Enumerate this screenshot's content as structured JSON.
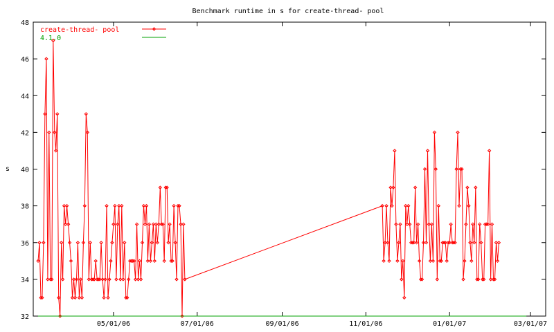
{
  "chart_data": {
    "type": "line",
    "title": "Benchmark runtime in s for create-thread-  pool",
    "xlabel": "",
    "ylabel": "s",
    "ylim": [
      32,
      48
    ],
    "yticks": [
      32,
      34,
      36,
      38,
      40,
      42,
      44,
      46,
      48
    ],
    "xticks": [
      "05/01/06",
      "07/01/06",
      "09/01/06",
      "11/01/06",
      "01/01/07",
      "03/01/07"
    ],
    "xlim": [
      "2006-03-07",
      "2007-03-01"
    ],
    "grid": false,
    "legend_position": "top-left",
    "series": [
      {
        "name": "create-thread-  pool",
        "color": "#ff0000",
        "markers": true,
        "points": [
          [
            "2006-03-07",
            35
          ],
          [
            "2006-03-08",
            36
          ],
          [
            "2006-03-09",
            33
          ],
          [
            "2006-03-10",
            33
          ],
          [
            "2006-03-11",
            36
          ],
          [
            "2006-03-12",
            43
          ],
          [
            "2006-03-13",
            46
          ],
          [
            "2006-03-14",
            34
          ],
          [
            "2006-03-15",
            42
          ],
          [
            "2006-03-16",
            34
          ],
          [
            "2006-03-17",
            34
          ],
          [
            "2006-03-18",
            47
          ],
          [
            "2006-03-19",
            42
          ],
          [
            "2006-03-20",
            41
          ],
          [
            "2006-03-21",
            43
          ],
          [
            "2006-03-22",
            33
          ],
          [
            "2006-03-23",
            32
          ],
          [
            "2006-03-24",
            36
          ],
          [
            "2006-03-25",
            34
          ],
          [
            "2006-03-26",
            38
          ],
          [
            "2006-03-27",
            37
          ],
          [
            "2006-03-28",
            38
          ],
          [
            "2006-03-29",
            37
          ],
          [
            "2006-03-30",
            36
          ],
          [
            "2006-03-31",
            35
          ],
          [
            "2006-04-01",
            33
          ],
          [
            "2006-04-02",
            34
          ],
          [
            "2006-04-03",
            33
          ],
          [
            "2006-04-04",
            34
          ],
          [
            "2006-04-05",
            36
          ],
          [
            "2006-04-06",
            33
          ],
          [
            "2006-04-07",
            34
          ],
          [
            "2006-04-08",
            33
          ],
          [
            "2006-04-09",
            36
          ],
          [
            "2006-04-10",
            38
          ],
          [
            "2006-04-11",
            43
          ],
          [
            "2006-04-12",
            42
          ],
          [
            "2006-04-13",
            34
          ],
          [
            "2006-04-14",
            36
          ],
          [
            "2006-04-15",
            34
          ],
          [
            "2006-04-16",
            34
          ],
          [
            "2006-04-17",
            34
          ],
          [
            "2006-04-18",
            35
          ],
          [
            "2006-04-19",
            34
          ],
          [
            "2006-04-20",
            34
          ],
          [
            "2006-04-21",
            34
          ],
          [
            "2006-04-22",
            36
          ],
          [
            "2006-04-23",
            34
          ],
          [
            "2006-04-24",
            33
          ],
          [
            "2006-04-25",
            34
          ],
          [
            "2006-04-26",
            38
          ],
          [
            "2006-04-27",
            33
          ],
          [
            "2006-04-28",
            34
          ],
          [
            "2006-04-29",
            35
          ],
          [
            "2006-04-30",
            36
          ],
          [
            "2006-05-01",
            37
          ],
          [
            "2006-05-02",
            38
          ],
          [
            "2006-05-03",
            34
          ],
          [
            "2006-05-04",
            37
          ],
          [
            "2006-05-05",
            38
          ],
          [
            "2006-05-06",
            34
          ],
          [
            "2006-05-07",
            38
          ],
          [
            "2006-05-08",
            34
          ],
          [
            "2006-05-09",
            36
          ],
          [
            "2006-05-10",
            33
          ],
          [
            "2006-05-11",
            33
          ],
          [
            "2006-05-12",
            34
          ],
          [
            "2006-05-13",
            35
          ],
          [
            "2006-05-14",
            35
          ],
          [
            "2006-05-15",
            35
          ],
          [
            "2006-05-16",
            35
          ],
          [
            "2006-05-17",
            34
          ],
          [
            "2006-05-18",
            37
          ],
          [
            "2006-05-19",
            34
          ],
          [
            "2006-05-20",
            35
          ],
          [
            "2006-05-21",
            34
          ],
          [
            "2006-05-22",
            36
          ],
          [
            "2006-05-23",
            38
          ],
          [
            "2006-05-24",
            37
          ],
          [
            "2006-05-25",
            38
          ],
          [
            "2006-05-26",
            35
          ],
          [
            "2006-05-27",
            37
          ],
          [
            "2006-05-28",
            35
          ],
          [
            "2006-05-29",
            36
          ],
          [
            "2006-05-30",
            37
          ],
          [
            "2006-05-31",
            35
          ],
          [
            "2006-06-01",
            37
          ],
          [
            "2006-06-02",
            36
          ],
          [
            "2006-06-03",
            37
          ],
          [
            "2006-06-04",
            39
          ],
          [
            "2006-06-05",
            37
          ],
          [
            "2006-06-06",
            37
          ],
          [
            "2006-06-07",
            35
          ],
          [
            "2006-06-08",
            39
          ],
          [
            "2006-06-09",
            39
          ],
          [
            "2006-06-10",
            36
          ],
          [
            "2006-06-11",
            37
          ],
          [
            "2006-06-12",
            35
          ],
          [
            "2006-06-13",
            35
          ],
          [
            "2006-06-14",
            38
          ],
          [
            "2006-06-15",
            36
          ],
          [
            "2006-06-16",
            34
          ],
          [
            "2006-06-17",
            38
          ],
          [
            "2006-06-18",
            38
          ],
          [
            "2006-06-19",
            37
          ],
          [
            "2006-06-20",
            32
          ],
          [
            "2006-06-21",
            37
          ],
          [
            "2006-06-22",
            34
          ],
          [
            "2006-11-13",
            38
          ],
          [
            "2006-11-14",
            35
          ],
          [
            "2006-11-15",
            36
          ],
          [
            "2006-11-16",
            38
          ],
          [
            "2006-11-17",
            36
          ],
          [
            "2006-11-18",
            35
          ],
          [
            "2006-11-19",
            39
          ],
          [
            "2006-11-20",
            38
          ],
          [
            "2006-11-21",
            39
          ],
          [
            "2006-11-22",
            41
          ],
          [
            "2006-11-23",
            37
          ],
          [
            "2006-11-24",
            35
          ],
          [
            "2006-11-25",
            36
          ],
          [
            "2006-11-26",
            37
          ],
          [
            "2006-11-27",
            34
          ],
          [
            "2006-11-28",
            35
          ],
          [
            "2006-11-29",
            33
          ],
          [
            "2006-11-30",
            38
          ],
          [
            "2006-12-01",
            37
          ],
          [
            "2006-12-02",
            38
          ],
          [
            "2006-12-03",
            37
          ],
          [
            "2006-12-04",
            36
          ],
          [
            "2006-12-05",
            36
          ],
          [
            "2006-12-06",
            36
          ],
          [
            "2006-12-07",
            39
          ],
          [
            "2006-12-08",
            36
          ],
          [
            "2006-12-09",
            37
          ],
          [
            "2006-12-10",
            35
          ],
          [
            "2006-12-11",
            34
          ],
          [
            "2006-12-12",
            34
          ],
          [
            "2006-12-13",
            36
          ],
          [
            "2006-12-14",
            40
          ],
          [
            "2006-12-15",
            36
          ],
          [
            "2006-12-16",
            41
          ],
          [
            "2006-12-17",
            37
          ],
          [
            "2006-12-18",
            35
          ],
          [
            "2006-12-19",
            37
          ],
          [
            "2006-12-20",
            35
          ],
          [
            "2006-12-21",
            42
          ],
          [
            "2006-12-22",
            40
          ],
          [
            "2006-12-23",
            34
          ],
          [
            "2006-12-24",
            38
          ],
          [
            "2006-12-25",
            35
          ],
          [
            "2006-12-26",
            35
          ],
          [
            "2006-12-27",
            36
          ],
          [
            "2006-12-28",
            36
          ],
          [
            "2006-12-29",
            36
          ],
          [
            "2006-12-30",
            35
          ],
          [
            "2006-12-31",
            36
          ],
          [
            "2007-01-01",
            36
          ],
          [
            "2007-01-02",
            37
          ],
          [
            "2007-01-03",
            36
          ],
          [
            "2007-01-04",
            36
          ],
          [
            "2007-01-05",
            36
          ],
          [
            "2007-01-06",
            40
          ],
          [
            "2007-01-07",
            42
          ],
          [
            "2007-01-08",
            38
          ],
          [
            "2007-01-09",
            40
          ],
          [
            "2007-01-10",
            40
          ],
          [
            "2007-01-11",
            34
          ],
          [
            "2007-01-12",
            35
          ],
          [
            "2007-01-13",
            37
          ],
          [
            "2007-01-14",
            39
          ],
          [
            "2007-01-15",
            38
          ],
          [
            "2007-01-16",
            36
          ],
          [
            "2007-01-17",
            35
          ],
          [
            "2007-01-18",
            37
          ],
          [
            "2007-01-19",
            36
          ],
          [
            "2007-01-20",
            39
          ],
          [
            "2007-01-21",
            34
          ],
          [
            "2007-01-22",
            34
          ],
          [
            "2007-01-23",
            37
          ],
          [
            "2007-01-24",
            36
          ],
          [
            "2007-01-25",
            34
          ],
          [
            "2007-01-26",
            34
          ],
          [
            "2007-01-27",
            37
          ],
          [
            "2007-01-28",
            37
          ],
          [
            "2007-01-29",
            37
          ],
          [
            "2007-01-30",
            41
          ],
          [
            "2007-01-31",
            34
          ],
          [
            "2007-02-01",
            37
          ],
          [
            "2007-02-02",
            34
          ],
          [
            "2007-02-03",
            34
          ],
          [
            "2007-02-04",
            36
          ],
          [
            "2007-02-05",
            35
          ],
          [
            "2007-02-06",
            36
          ]
        ]
      },
      {
        "name": "4.1.0",
        "color": "#00a000",
        "markers": false,
        "points": [
          [
            "2006-03-07",
            32
          ],
          [
            "2007-02-26",
            32
          ]
        ]
      }
    ]
  }
}
